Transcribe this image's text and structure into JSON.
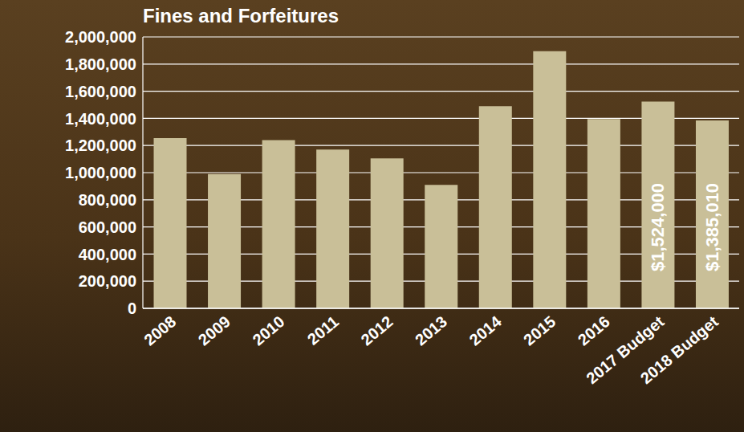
{
  "chart_data": {
    "type": "bar",
    "title": "Fines and Forfeitures",
    "categories": [
      "2008",
      "2009",
      "2010",
      "2011",
      "2012",
      "2013",
      "2014",
      "2015",
      "2016",
      "2017 Budget",
      "2018 Budget"
    ],
    "values": [
      1255000,
      990000,
      1240000,
      1170000,
      1105000,
      910000,
      1490000,
      1895000,
      1395000,
      1524000,
      1385010
    ],
    "value_labels": [
      null,
      null,
      null,
      null,
      null,
      null,
      null,
      null,
      null,
      "$1,524,000",
      "$1,385,010"
    ],
    "data_labels": true,
    "color": "#c9bf98",
    "ylim": [
      0,
      2000000
    ],
    "yticks": [
      0,
      {
        "value": 200000,
        "label": "200,000"
      },
      {
        "value": 400000,
        "label": "400,000"
      },
      {
        "value": 600000,
        "label": "600,000"
      },
      {
        "value": 800000,
        "label": "800,000"
      },
      {
        "value": 1000000,
        "label": "1,000,000"
      },
      {
        "value": 1200000,
        "label": "1,200,000"
      },
      {
        "value": 1400000,
        "label": "1,400,000"
      },
      {
        "value": 1600000,
        "label": "1,600,000"
      },
      {
        "value": 1800000,
        "label": "1,800,000"
      },
      {
        "value": 2000000,
        "label": "2,000,000"
      }
    ],
    "grid": true
  }
}
